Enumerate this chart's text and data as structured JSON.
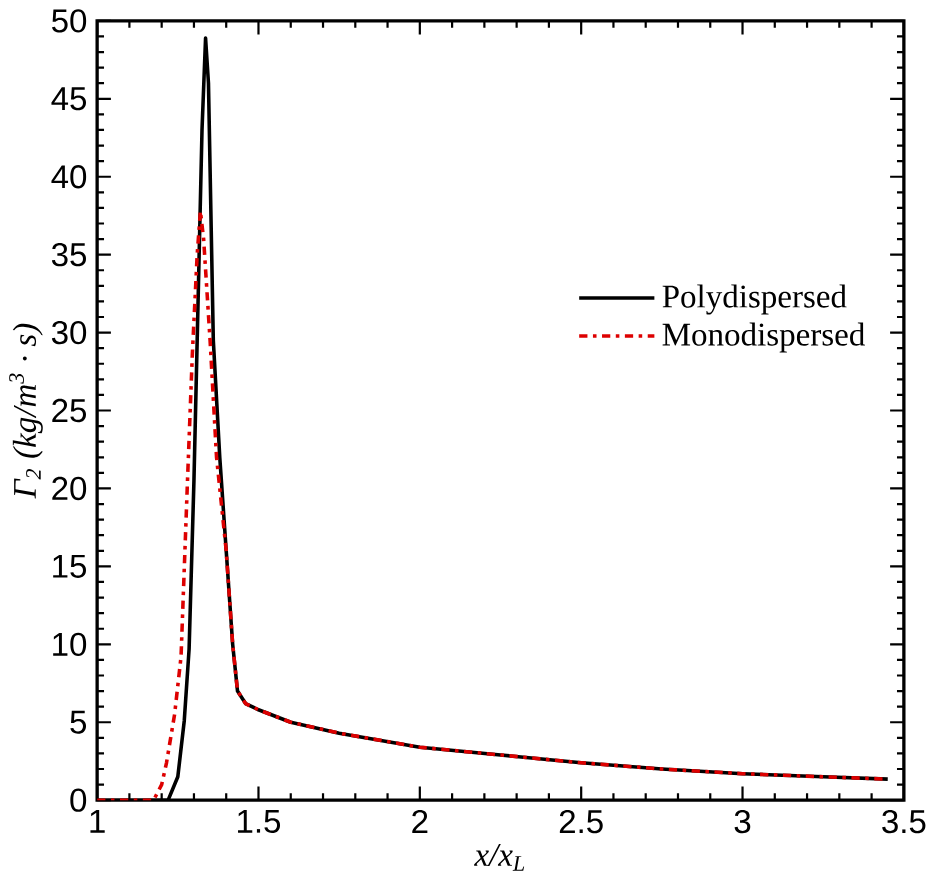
{
  "chart_data": {
    "type": "line",
    "xlabel": "x/x$_{L}$",
    "ylabel": "Γ$_{2}$ (kg/m$^{3}$ · s)",
    "xlim": [
      1,
      3.5
    ],
    "xticks": [
      1,
      1.5,
      2,
      2.5,
      3,
      3.5
    ],
    "ylim": [
      0,
      50
    ],
    "yticks": [
      0,
      5,
      10,
      15,
      20,
      25,
      30,
      35,
      40,
      45,
      50
    ],
    "legend": "right",
    "grid": false,
    "series": [
      {
        "name": "Polydispersed",
        "color": "#000000",
        "line_style": "solid",
        "x": [
          1.0,
          1.2,
          1.22,
          1.25,
          1.27,
          1.285,
          1.3,
          1.31,
          1.325,
          1.336,
          1.345,
          1.36,
          1.38,
          1.4,
          1.42,
          1.435,
          1.46,
          1.5,
          1.6,
          1.75,
          2.0,
          2.25,
          2.5,
          2.75,
          3.0,
          3.25,
          3.45
        ],
        "values": [
          0,
          0,
          0,
          1.5,
          5.1,
          9.7,
          20.5,
          29.5,
          43,
          48.9,
          46,
          29.5,
          22,
          16,
          10,
          7,
          6.2,
          5.8,
          5,
          4.3,
          3.4,
          2.9,
          2.4,
          2.0,
          1.7,
          1.5,
          1.35
        ]
      },
      {
        "name": "Monodispersed",
        "color": "#dd0000",
        "line_style": "dashdot",
        "x": [
          1.0,
          1.16,
          1.175,
          1.2,
          1.215,
          1.24,
          1.26,
          1.28,
          1.295,
          1.31,
          1.32,
          1.33,
          1.35,
          1.37,
          1.4,
          1.42,
          1.435,
          1.46,
          1.5,
          1.6,
          1.75,
          2.0,
          2.25,
          2.5,
          2.75,
          3.0,
          3.25,
          3.45
        ],
        "values": [
          0,
          0,
          0,
          1,
          2.4,
          5.5,
          9.2,
          20.5,
          28.6,
          35,
          37.8,
          36,
          29.5,
          22,
          16,
          10,
          7,
          6.2,
          5.8,
          5,
          4.3,
          3.4,
          2.9,
          2.4,
          2.0,
          1.7,
          1.5,
          1.35
        ]
      }
    ]
  }
}
